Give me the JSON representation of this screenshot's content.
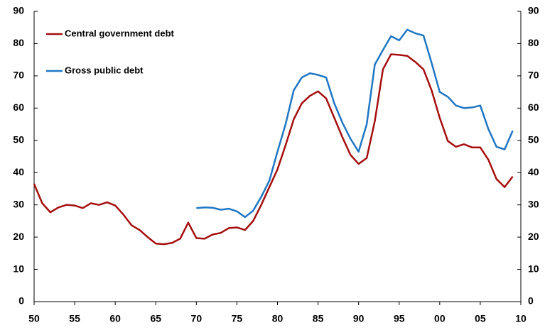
{
  "chart_data": {
    "type": "line",
    "x": [
      1950,
      1951,
      1952,
      1953,
      1954,
      1955,
      1956,
      1957,
      1958,
      1959,
      1960,
      1961,
      1962,
      1963,
      1964,
      1965,
      1966,
      1967,
      1968,
      1969,
      1970,
      1971,
      1972,
      1973,
      1974,
      1975,
      1976,
      1977,
      1978,
      1979,
      1980,
      1981,
      1982,
      1983,
      1984,
      1985,
      1986,
      1987,
      1988,
      1989,
      1990,
      1991,
      1992,
      1993,
      1994,
      1995,
      1996,
      1997,
      1998,
      1999,
      2000,
      2001,
      2002,
      2003,
      2004,
      2005,
      2006,
      2007,
      2008,
      2009
    ],
    "series": [
      {
        "name": "Central government debt",
        "color": "#a50f0f",
        "values": [
          36.5,
          30.5,
          27.7,
          29.2,
          30.0,
          29.8,
          29.0,
          30.5,
          30.0,
          30.8,
          29.8,
          27.0,
          23.7,
          22.2,
          20.0,
          18.0,
          17.8,
          18.2,
          19.5,
          24.5,
          19.7,
          19.5,
          20.8,
          21.3,
          22.8,
          23.0,
          22.2,
          25.0,
          30.0,
          35.5,
          41.0,
          48.5,
          56.5,
          61.5,
          63.8,
          65.2,
          63.0,
          57.0,
          51.0,
          45.5,
          42.7,
          44.5,
          56.0,
          72.0,
          76.7,
          76.5,
          76.2,
          74.3,
          72.0,
          65.5,
          57.0,
          49.8,
          48.0,
          48.8,
          47.8,
          47.8,
          44.0,
          38.0,
          35.5,
          38.8
        ]
      },
      {
        "name": "Gross public debt",
        "color": "#1f77c4",
        "values": [
          null,
          null,
          null,
          null,
          null,
          null,
          null,
          null,
          null,
          null,
          null,
          null,
          null,
          null,
          null,
          null,
          null,
          null,
          null,
          null,
          29.0,
          29.2,
          29.1,
          28.5,
          28.8,
          28.0,
          26.2,
          28.2,
          32.5,
          37.5,
          46.5,
          55.0,
          65.5,
          69.5,
          70.8,
          70.3,
          69.5,
          61.5,
          55.5,
          50.5,
          46.5,
          55.0,
          73.5,
          78.0,
          82.3,
          81.0,
          84.3,
          83.2,
          82.5,
          74.0,
          65.0,
          63.5,
          60.8,
          60.0,
          60.2,
          60.8,
          53.5,
          48.0,
          47.2,
          53.0
        ]
      }
    ],
    "xlim": [
      1950,
      2010
    ],
    "xticks": [
      {
        "value": 1950,
        "label": "50"
      },
      {
        "value": 1955,
        "label": "55"
      },
      {
        "value": 1960,
        "label": "60"
      },
      {
        "value": 1965,
        "label": "65"
      },
      {
        "value": 1970,
        "label": "70"
      },
      {
        "value": 1975,
        "label": "75"
      },
      {
        "value": 1980,
        "label": "80"
      },
      {
        "value": 1985,
        "label": "85"
      },
      {
        "value": 1990,
        "label": "90"
      },
      {
        "value": 1995,
        "label": "95"
      },
      {
        "value": 2000,
        "label": "00"
      },
      {
        "value": 2005,
        "label": "05"
      },
      {
        "value": 2010,
        "label": "10"
      }
    ],
    "ylim": [
      0,
      90
    ],
    "yticks": [
      0,
      10,
      20,
      30,
      40,
      50,
      60,
      70,
      80,
      90
    ],
    "y2lim": [
      0,
      90
    ],
    "y2ticks": [
      0,
      10,
      20,
      30,
      40,
      50,
      60,
      70,
      80,
      90
    ],
    "grid": false,
    "legend": "upper left"
  }
}
